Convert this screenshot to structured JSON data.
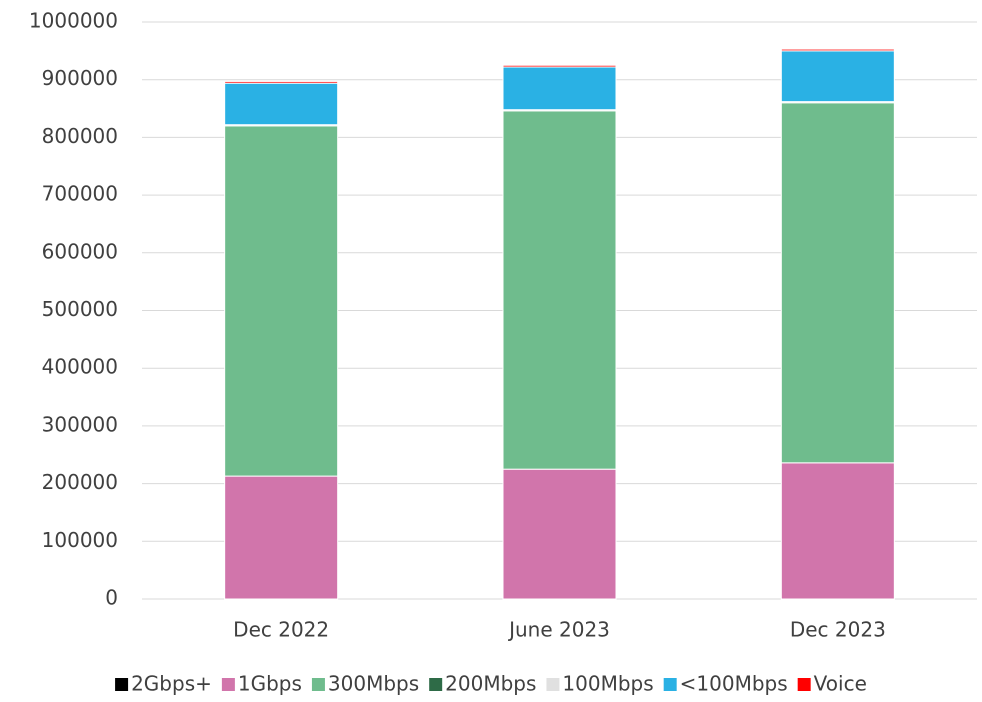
{
  "chart_data": {
    "type": "stacked_bar",
    "categories": [
      "Dec 2022",
      "June 2023",
      "Dec 2023"
    ],
    "series": [
      {
        "name": "2Gbps+",
        "color": "#000000",
        "values": [
          0,
          0,
          0
        ]
      },
      {
        "name": "1Gbps",
        "color": "#d175ab",
        "values": [
          213000,
          225000,
          236000
        ]
      },
      {
        "name": "300Mbps",
        "color": "#6fbc8d",
        "values": [
          607000,
          621000,
          624000
        ]
      },
      {
        "name": "200Mbps",
        "color": "#2e6b47",
        "values": [
          0,
          0,
          0
        ]
      },
      {
        "name": "100Mbps",
        "color": "#e0e0e0",
        "values": [
          2000,
          2000,
          2000
        ]
      },
      {
        "name": "<100Mbps",
        "color": "#2ab1e4",
        "values": [
          72000,
          74000,
          88000
        ]
      },
      {
        "name": "Voice",
        "color": "#ff0000",
        "values": [
          3000,
          3000,
          3000
        ]
      }
    ],
    "ylim": [
      0,
      1000000
    ],
    "yticks": [
      0,
      100000,
      200000,
      300000,
      400000,
      500000,
      600000,
      700000,
      800000,
      900000,
      1000000
    ],
    "grid": true,
    "legend": "bottom"
  }
}
